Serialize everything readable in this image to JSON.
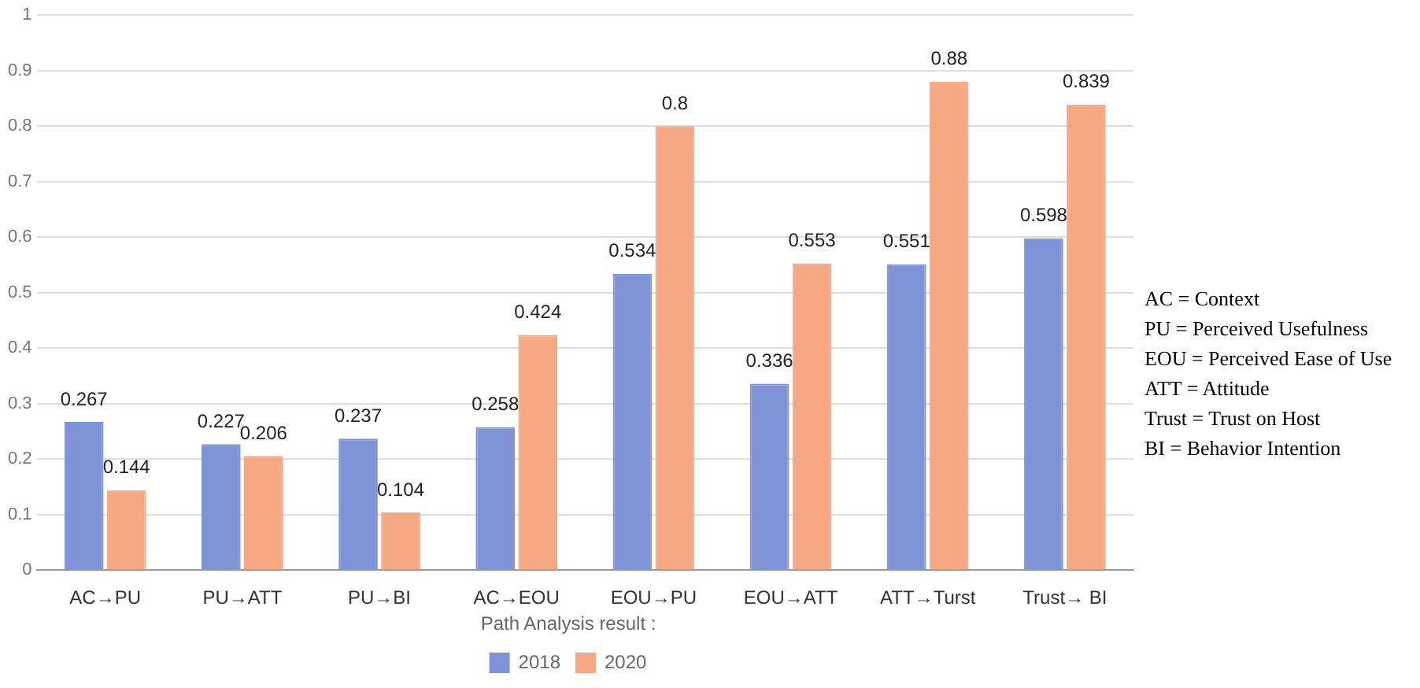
{
  "chart_data": {
    "type": "bar",
    "categories": [
      "AC→PU",
      "PU→ATT",
      "PU→BI",
      "AC→EOU",
      "EOU→PU",
      "EOU→ATT",
      "ATT→Turst",
      "Trust→ BI"
    ],
    "series": [
      {
        "name": "2018",
        "color": "#7f93d8",
        "values": [
          0.267,
          0.227,
          0.237,
          0.258,
          0.534,
          0.336,
          0.551,
          0.598
        ]
      },
      {
        "name": "2020",
        "color": "#f5a882",
        "values": [
          0.144,
          0.206,
          0.104,
          0.424,
          0.8,
          0.553,
          0.88,
          0.839
        ]
      }
    ],
    "ylim": [
      0,
      1
    ],
    "yticks": [
      0,
      0.1,
      0.2,
      0.3,
      0.4,
      0.5,
      0.6,
      0.7,
      0.8,
      0.9,
      1
    ],
    "grid": "y",
    "data_labels": true,
    "legend": "bottom",
    "legend_title": "Path Analysis result :",
    "annotations": [
      "AC = Context",
      "PU = Perceived Usefulness",
      "EOU = Perceived Ease of Use",
      "ATT = Attitude",
      "Trust = Trust on Host",
      "BI = Behavior Intention"
    ]
  }
}
